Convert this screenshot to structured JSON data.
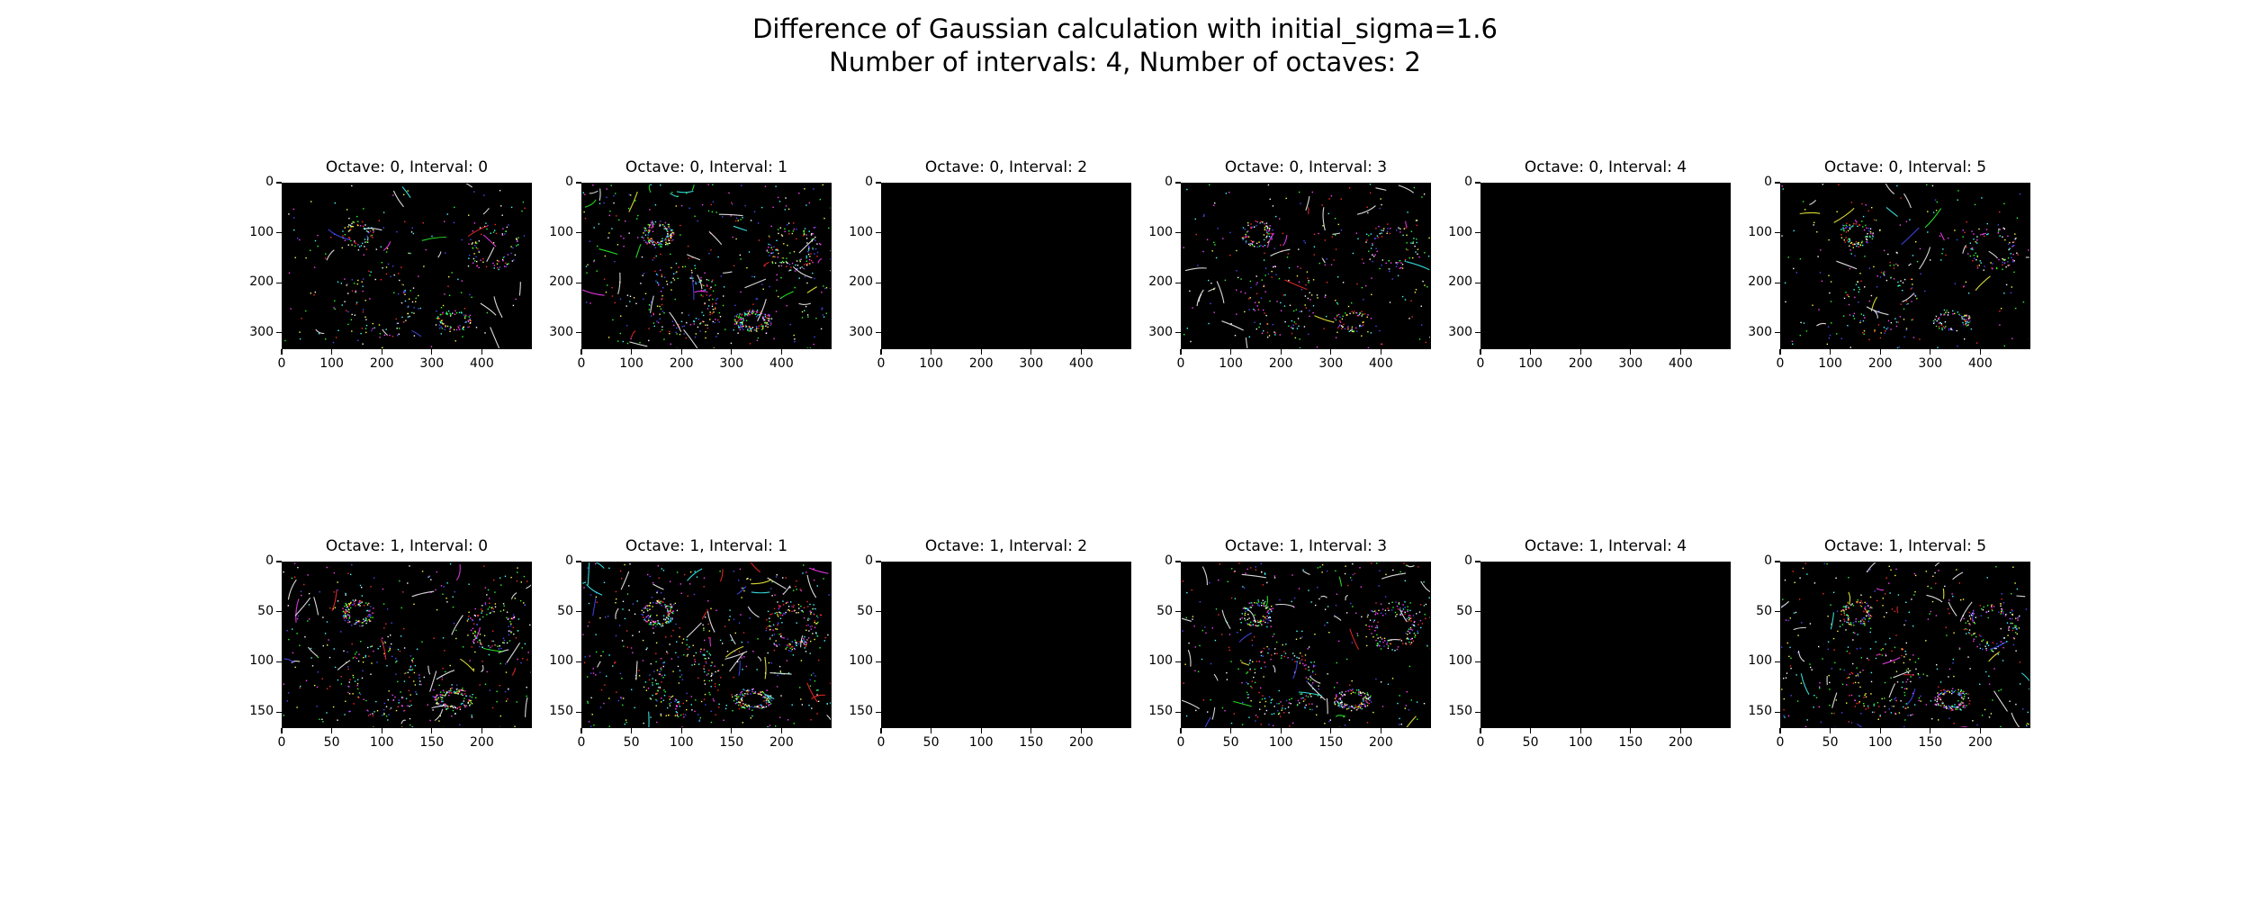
{
  "figure": {
    "title_line1": "Difference of Gaussian calculation with initial_sigma=1.6",
    "title_line2": "Number of intervals: 4, Number of octaves: 2"
  },
  "chart_data": [
    {
      "type": "heatmap",
      "title": "Octave: 0, Interval: 0",
      "xlim": [
        0,
        500
      ],
      "ylim": [
        333,
        0
      ],
      "xticks": [
        0,
        100,
        200,
        300,
        400
      ],
      "yticks": [
        0,
        100,
        200,
        300
      ],
      "content": "sparse-edges",
      "density": 0.5
    },
    {
      "type": "heatmap",
      "title": "Octave: 0, Interval: 1",
      "xlim": [
        0,
        500
      ],
      "ylim": [
        333,
        0
      ],
      "xticks": [
        0,
        100,
        200,
        300,
        400
      ],
      "yticks": [
        0,
        100,
        200,
        300
      ],
      "content": "sparse-edges",
      "density": 0.9
    },
    {
      "type": "heatmap",
      "title": "Octave: 0, Interval: 2",
      "xlim": [
        0,
        500
      ],
      "ylim": [
        333,
        0
      ],
      "xticks": [
        0,
        100,
        200,
        300,
        400
      ],
      "yticks": [
        0,
        100,
        200,
        300
      ],
      "content": "black",
      "density": 0
    },
    {
      "type": "heatmap",
      "title": "Octave: 0, Interval: 3",
      "xlim": [
        0,
        500
      ],
      "ylim": [
        333,
        0
      ],
      "xticks": [
        0,
        100,
        200,
        300,
        400
      ],
      "yticks": [
        0,
        100,
        200,
        300
      ],
      "content": "sparse-edges",
      "density": 0.55
    },
    {
      "type": "heatmap",
      "title": "Octave: 0, Interval: 4",
      "xlim": [
        0,
        500
      ],
      "ylim": [
        333,
        0
      ],
      "xticks": [
        0,
        100,
        200,
        300,
        400
      ],
      "yticks": [
        0,
        100,
        200,
        300
      ],
      "content": "black",
      "density": 0
    },
    {
      "type": "heatmap",
      "title": "Octave: 0, Interval: 5",
      "xlim": [
        0,
        500
      ],
      "ylim": [
        333,
        0
      ],
      "xticks": [
        0,
        100,
        200,
        300,
        400
      ],
      "yticks": [
        0,
        100,
        200,
        300
      ],
      "content": "sparse-edges",
      "density": 0.55
    },
    {
      "type": "heatmap",
      "title": "Octave: 1, Interval: 0",
      "xlim": [
        0,
        250
      ],
      "ylim": [
        166,
        0
      ],
      "xticks": [
        0,
        50,
        100,
        150,
        200
      ],
      "yticks": [
        0,
        50,
        100,
        150
      ],
      "content": "sparse-edges",
      "density": 0.8
    },
    {
      "type": "heatmap",
      "title": "Octave: 1, Interval: 1",
      "xlim": [
        0,
        250
      ],
      "ylim": [
        166,
        0
      ],
      "xticks": [
        0,
        50,
        100,
        150,
        200
      ],
      "yticks": [
        0,
        50,
        100,
        150
      ],
      "content": "sparse-edges",
      "density": 1.0
    },
    {
      "type": "heatmap",
      "title": "Octave: 1, Interval: 2",
      "xlim": [
        0,
        250
      ],
      "ylim": [
        166,
        0
      ],
      "xticks": [
        0,
        50,
        100,
        150,
        200
      ],
      "yticks": [
        0,
        50,
        100,
        150
      ],
      "content": "black",
      "density": 0
    },
    {
      "type": "heatmap",
      "title": "Octave: 1, Interval: 3",
      "xlim": [
        0,
        250
      ],
      "ylim": [
        166,
        0
      ],
      "xticks": [
        0,
        50,
        100,
        150,
        200
      ],
      "yticks": [
        0,
        50,
        100,
        150
      ],
      "content": "sparse-edges",
      "density": 0.85
    },
    {
      "type": "heatmap",
      "title": "Octave: 1, Interval: 4",
      "xlim": [
        0,
        250
      ],
      "ylim": [
        166,
        0
      ],
      "xticks": [
        0,
        50,
        100,
        150,
        200
      ],
      "yticks": [
        0,
        50,
        100,
        150
      ],
      "content": "black",
      "density": 0
    },
    {
      "type": "heatmap",
      "title": "Octave: 1, Interval: 5",
      "xlim": [
        0,
        250
      ],
      "ylim": [
        166,
        0
      ],
      "xticks": [
        0,
        50,
        100,
        150,
        200
      ],
      "yticks": [
        0,
        50,
        100,
        150
      ],
      "content": "sparse-edges",
      "density": 0.8
    }
  ],
  "colors": {
    "background": "#000000",
    "edge_colors": [
      "#ffffff",
      "#ff2a2a",
      "#2aff2a",
      "#4a4aff",
      "#ff40ff",
      "#40ffff",
      "#ffff40"
    ]
  }
}
